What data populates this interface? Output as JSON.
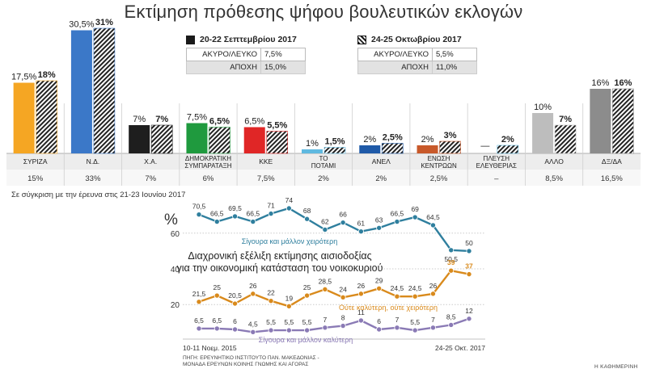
{
  "title": "Εκτίμηση πρόθεσης ψήφου βουλευτικών εκλογών",
  "legend": {
    "wave1": {
      "label": "20-22 Σεπτεμβρίου 2017",
      "invalid_label": "ΑΚΥΡΟ/ΛΕΥΚΟ",
      "invalid_value": "7,5%",
      "abstain_label": "ΑΠΟΧΗ",
      "abstain_value": "15,0%"
    },
    "wave2": {
      "label": "24-25 Οκτωβρίου 2017",
      "invalid_label": "ΑΚΥΡΟ/ΛΕΥΚΟ",
      "invalid_value": "5,5%",
      "abstain_label": "ΑΠΟΧΗ",
      "abstain_value": "11,0%"
    }
  },
  "compare_note": "Σε σύγκριση με την έρευνα στις 21-23 Ιουνίου 2017",
  "subtitle_lines": [
    "Διαχρονική εξέλιξη εκτίμησης αισιοδοξίας",
    "για την οικονομική κατάσταση του νοικοκυριού"
  ],
  "pct_sign": "%",
  "source_lines": [
    "ΠΗΓΗ: ΕΡΕΥΝΗΤΙΚΟ ΙΝΣΤΙΤΟΥΤΟ ΠΑΝ. ΜΑΚΕΔΟΝΙΑΣ -",
    "ΜΟΝΑΔΑ ΕΡΕΥΝΩΝ ΚΟΙΝΗΣ ΓΝΩΜΗΣ ΚΑΙ ΑΓΟΡΑΣ"
  ],
  "brand": "Η ΚΑΘΗΜΕΡΙΝΗ",
  "chart_data": [
    {
      "type": "bar",
      "title": "Εκτίμηση πρόθεσης ψήφου βουλευτικών εκλογών",
      "categories": [
        "ΣΥΡΙΖΑ",
        "Ν.Δ.",
        "Χ.Α.",
        "ΔΗΜΟΚΡΑΤΙΚΗ ΣΥΜΠΑΡΑΤΑΞΗ",
        "ΚΚΕ",
        "ΤΟ ΠΟΤΑΜΙ",
        "ΑΝΕΛ",
        "ΕΝΩΣΗ ΚΕΝΤΡΩΩΝ",
        "ΠΛΕΥΣΗ ΕΛΕΥΘΕΡΙΑΣ",
        "ΑΛΛΟ",
        "ΔΞ/ΔΑ"
      ],
      "series": [
        {
          "name": "20-22 Σεπτεμβρίου 2017",
          "values": [
            17.5,
            30.5,
            7,
            7.5,
            6.5,
            1,
            2,
            2,
            null,
            10,
            16
          ],
          "labels": [
            "17,5%",
            "30,5%",
            "7%",
            "7,5%",
            "6,5%",
            "1%",
            "2%",
            "2%",
            "—",
            "10%",
            "16%"
          ]
        },
        {
          "name": "24-25 Οκτωβρίου 2017",
          "values": [
            18,
            31,
            7,
            6.5,
            5.5,
            1.5,
            2.5,
            3,
            2,
            7,
            16
          ],
          "labels": [
            "18%",
            "31%",
            "7%",
            "6,5%",
            "5,5%",
            "1,5%",
            "2,5%",
            "3%",
            "2%",
            "7%",
            "16%"
          ]
        }
      ],
      "comparison": {
        "label": "Σε σύγκριση με την έρευνα στις 21-23 Ιουνίου 2017",
        "values": [
          "15%",
          "33%",
          "7%",
          "6%",
          "7,5%",
          "2%",
          "2%",
          "2,5%",
          "–",
          "8,5%",
          "16,5%"
        ]
      },
      "colors": [
        "#f5a623",
        "#3b78c8",
        "#1e1e1e",
        "#1f9a3e",
        "#e02626",
        "#5fb9e0",
        "#1f5aa8",
        "#c8592a",
        "#5fb9e0",
        "#bdbdbd",
        "#8c8c8c"
      ],
      "ylim": [
        0,
        32
      ]
    },
    {
      "type": "line",
      "title": "Διαχρονική εξέλιξη εκτίμησης αισιοδοξίας για την οικονομική κατάσταση του νοικοκυριού",
      "x_start_label": "10-11 Νοεμ. 2015",
      "x_end_label": "24-25 Οκτ. 2017",
      "yticks": [
        60,
        40,
        20
      ],
      "ylim": [
        0,
        78
      ],
      "series": [
        {
          "name": "Σίγουρα και μάλλον χειρότερη",
          "color": "#2f7f9e",
          "values": [
            70.5,
            66.5,
            69.5,
            66.5,
            71,
            74,
            68,
            62,
            66,
            61,
            63,
            66.5,
            69,
            64.5,
            50.5,
            50
          ],
          "labels": [
            "70,5",
            "66,5",
            "69,5",
            "66,5",
            "71",
            "74",
            "68",
            "62",
            "66",
            "61",
            "63",
            "66,5",
            "69",
            "64,5",
            "50,5",
            "50"
          ]
        },
        {
          "name": "Ούτε καλύτερη, ούτε χειρότερη",
          "color": "#d98a1c",
          "values": [
            21.5,
            25,
            20.5,
            26,
            22,
            19,
            25,
            28.5,
            24,
            26,
            29,
            24.5,
            24.5,
            26,
            39,
            37
          ],
          "labels": [
            "21,5",
            "25",
            "20,5",
            "26",
            "22",
            "19",
            "25",
            "28,5",
            "24",
            "26",
            "29",
            "24,5",
            "24,5",
            "26",
            "39",
            "37"
          ]
        },
        {
          "name": "Σίγουρα και μάλλον καλύτερη",
          "color": "#8a7ab5",
          "values": [
            6.5,
            6.5,
            6,
            4.5,
            5.5,
            5.5,
            5.5,
            7,
            8,
            11,
            6,
            7,
            5.5,
            7,
            8.5,
            12
          ],
          "labels": [
            "6,5",
            "6,5",
            "6",
            "4,5",
            "5,5",
            "5,5",
            "5,5",
            "7",
            "8",
            "11",
            "6",
            "7",
            "5,5",
            "7",
            "8,5",
            "12"
          ]
        }
      ]
    }
  ]
}
